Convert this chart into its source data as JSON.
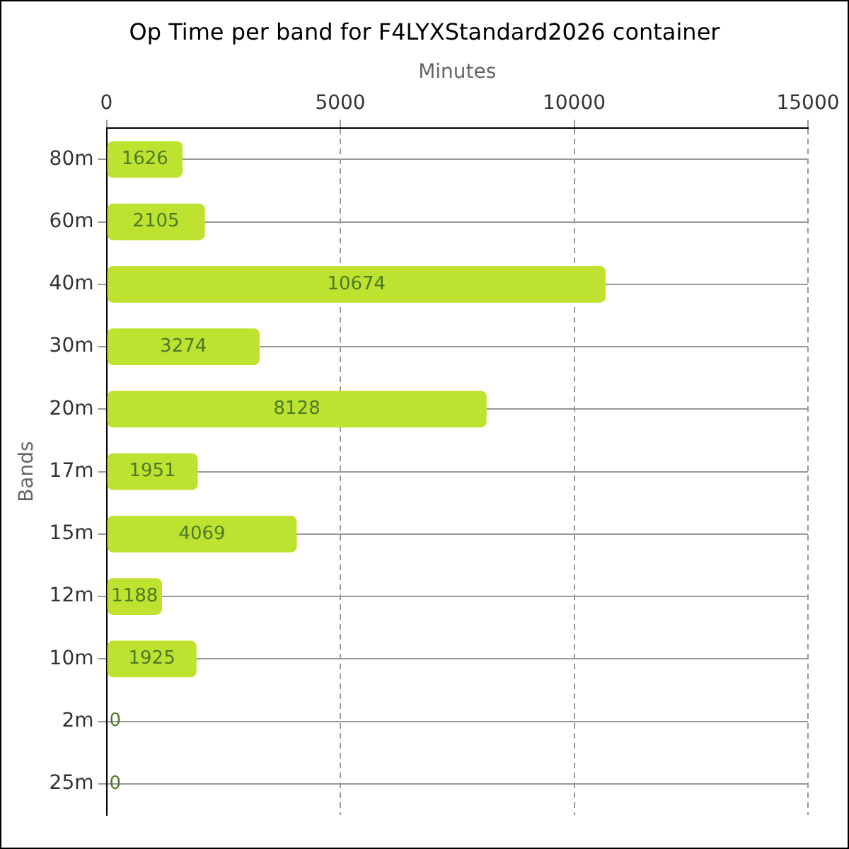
{
  "chart_data": {
    "type": "bar",
    "orientation": "horizontal",
    "title": "Op Time per band for F4LYXStandard2026 container",
    "xlabel": "Minutes",
    "ylabel": "Bands",
    "categories": [
      "80m",
      "60m",
      "40m",
      "30m",
      "20m",
      "17m",
      "15m",
      "12m",
      "10m",
      "2m",
      "25m"
    ],
    "values": [
      1626,
      2105,
      10674,
      3274,
      8128,
      1951,
      4069,
      1188,
      1925,
      0,
      0
    ],
    "color": "#bde22f",
    "xlim": [
      0,
      15000
    ],
    "xticks": [
      0,
      5000,
      10000,
      15000
    ],
    "grid": true,
    "data_labels": true
  }
}
